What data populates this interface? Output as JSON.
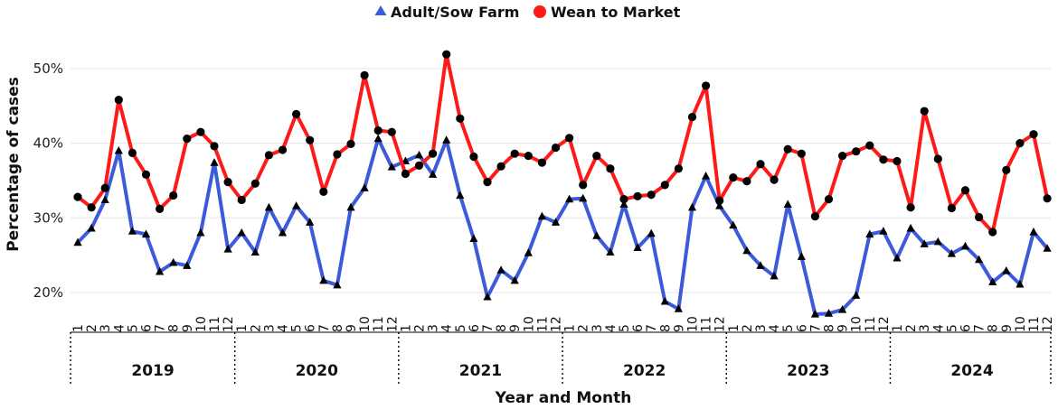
{
  "chart_data": {
    "type": "line",
    "title": "",
    "xlabel": "Year and Month",
    "ylabel": "Percentage of cases",
    "y_ticks": [
      "20%",
      "30%",
      "40%",
      "50%"
    ],
    "y_tick_values": [
      20,
      30,
      40,
      50
    ],
    "ylim": [
      16,
      53
    ],
    "grid": "horizontal",
    "legend_position": "top-center",
    "years": [
      "2019",
      "2020",
      "2021",
      "2022",
      "2023",
      "2024"
    ],
    "months": [
      "1",
      "2",
      "3",
      "4",
      "5",
      "6",
      "7",
      "8",
      "9",
      "10",
      "11",
      "12"
    ],
    "series": [
      {
        "name": "Adult/Sow Farm",
        "color": "#3b5bdb",
        "marker": "triangle",
        "values": [
          26.7,
          28.6,
          32.4,
          39.0,
          28.2,
          27.8,
          22.8,
          24.0,
          23.6,
          28.0,
          37.4,
          25.8,
          28.0,
          25.4,
          31.4,
          28.0,
          31.6,
          29.4,
          21.6,
          21.0,
          31.4,
          34.0,
          40.6,
          36.8,
          37.6,
          38.4,
          35.8,
          40.4,
          33.0,
          27.2,
          19.4,
          23.0,
          21.6,
          25.3,
          30.2,
          29.4,
          32.5,
          32.6,
          27.6,
          25.4,
          31.8,
          26.0,
          27.9,
          18.8,
          17.8,
          31.4,
          35.6,
          31.6,
          29.0,
          25.6,
          23.6,
          22.2,
          31.8,
          24.8,
          17.1,
          17.2,
          17.7,
          19.6,
          27.8,
          28.2,
          24.6,
          28.6,
          26.5,
          26.8,
          25.2,
          26.2,
          24.4,
          21.4,
          22.9,
          21.1,
          28.1,
          25.9
        ]
      },
      {
        "name": "Wean to Market",
        "color": "#ff1a1a",
        "marker": "circle",
        "values": [
          32.8,
          31.4,
          34.0,
          45.8,
          38.7,
          35.8,
          31.2,
          33.0,
          40.6,
          41.5,
          39.6,
          34.8,
          32.4,
          34.6,
          38.4,
          39.1,
          43.9,
          40.4,
          33.5,
          38.5,
          39.9,
          49.1,
          41.7,
          41.5,
          35.9,
          37.0,
          38.6,
          51.9,
          43.3,
          38.2,
          34.8,
          36.9,
          38.6,
          38.3,
          37.4,
          39.4,
          40.7,
          34.4,
          38.3,
          36.6,
          32.5,
          32.9,
          33.1,
          34.4,
          36.6,
          43.5,
          47.7,
          32.3,
          35.4,
          34.9,
          37.2,
          35.1,
          39.2,
          38.6,
          30.2,
          32.5,
          38.3,
          38.9,
          39.7,
          37.8,
          37.6,
          31.4,
          44.3,
          37.9,
          31.3,
          33.7,
          30.1,
          28.1,
          36.4,
          40.0,
          41.2,
          32.6
        ]
      }
    ]
  }
}
